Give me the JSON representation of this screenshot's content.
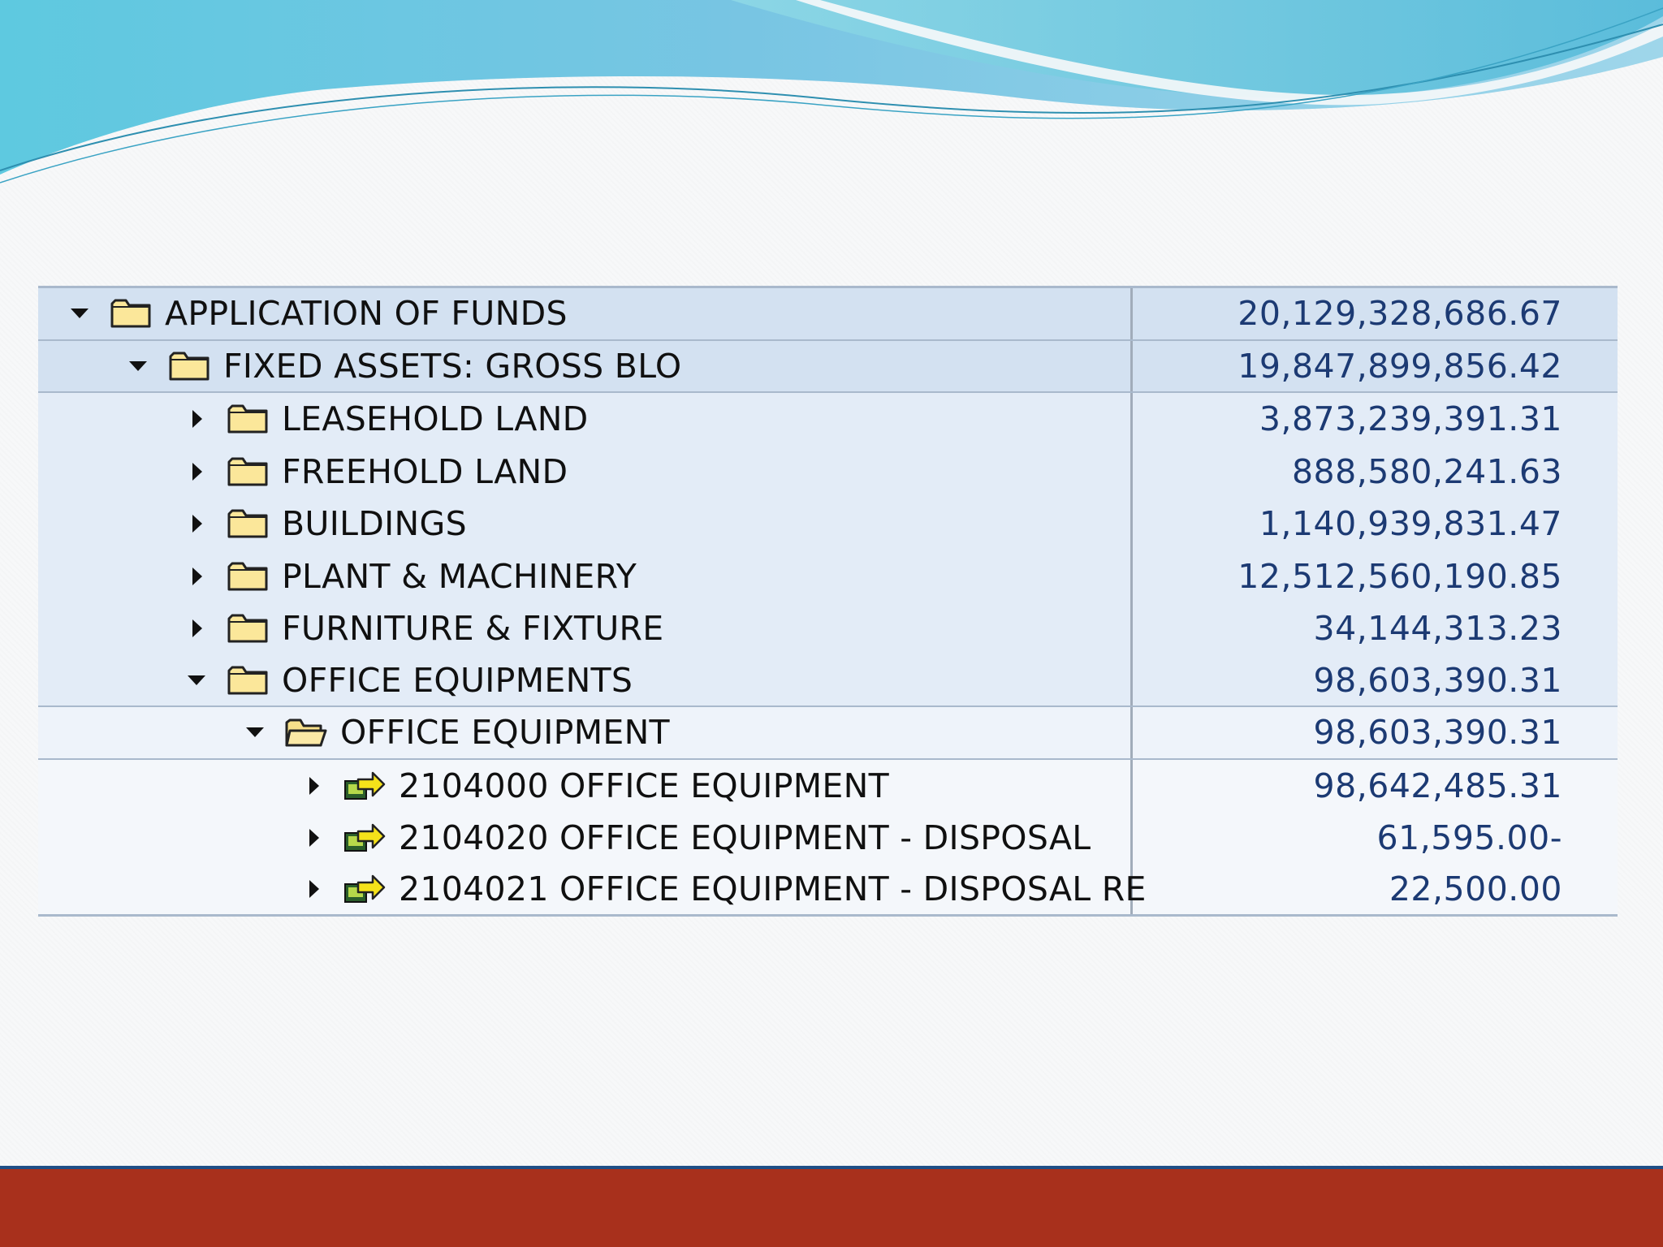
{
  "colors": {
    "row_level_0_1": "#d3e1f1",
    "row_level_2": "#e3ecf7",
    "row_level_3": "#eef3fa",
    "row_level_4": "#f4f7fb",
    "value_text": "#1c3a73",
    "bottom_bar": "#a8301c",
    "bottom_bar_border": "#1f4f87",
    "wave_blue": "#5cc3dc"
  },
  "tree": {
    "rows": [
      {
        "label": "APPLICATION OF FUNDS",
        "value": "20,129,328,686.67",
        "expanded": true,
        "icon": "folder-icon"
      },
      {
        "label": "FIXED ASSETS: GROSS BLO",
        "value": "19,847,899,856.42",
        "expanded": true,
        "icon": "folder-icon"
      },
      {
        "label": "LEASEHOLD LAND",
        "value": "3,873,239,391.31",
        "expanded": false,
        "icon": "folder-icon"
      },
      {
        "label": "FREEHOLD LAND",
        "value": "888,580,241.63",
        "expanded": false,
        "icon": "folder-icon"
      },
      {
        "label": "BUILDINGS",
        "value": "1,140,939,831.47",
        "expanded": false,
        "icon": "folder-icon"
      },
      {
        "label": "PLANT & MACHINERY",
        "value": "12,512,560,190.85",
        "expanded": false,
        "icon": "folder-icon"
      },
      {
        "label": "FURNITURE & FIXTURE",
        "value": "34,144,313.23",
        "expanded": false,
        "icon": "folder-icon"
      },
      {
        "label": "OFFICE EQUIPMENTS",
        "value": "98,603,390.31",
        "expanded": true,
        "icon": "folder-icon"
      },
      {
        "label": "OFFICE EQUIPMENT",
        "value": "98,603,390.31",
        "expanded": true,
        "icon": "open-folder-icon"
      },
      {
        "label": "2104000 OFFICE EQUIPMENT",
        "value": "98,642,485.31",
        "expanded": false,
        "icon": "gl-account-icon"
      },
      {
        "label": "2104020 OFFICE EQUIPMENT - DISPOSAL",
        "value": "61,595.00-",
        "expanded": false,
        "icon": "gl-account-icon"
      },
      {
        "label": "2104021 OFFICE EQUIPMENT - DISPOSAL RE",
        "value": "22,500.00",
        "expanded": false,
        "icon": "gl-account-icon"
      }
    ]
  }
}
